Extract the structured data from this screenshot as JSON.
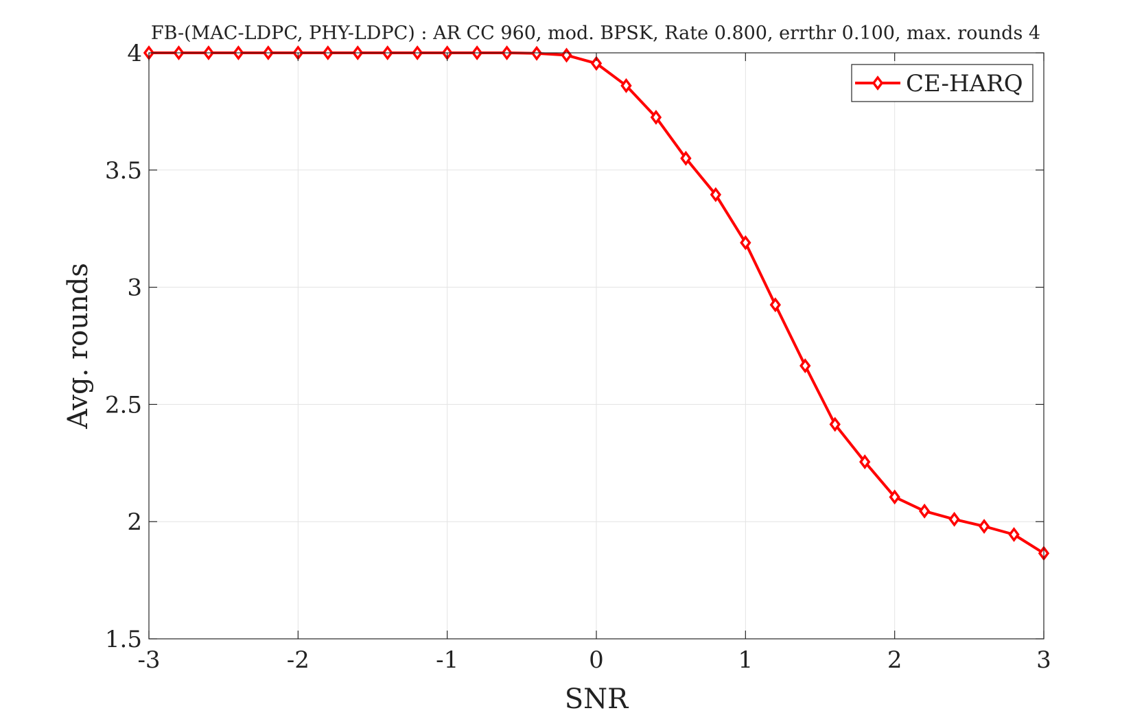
{
  "chart_data": {
    "type": "line",
    "title": "FB-(MAC-LDPC, PHY-LDPC) : AR CC 960, mod. BPSK, Rate 0.800, errthr 0.100, max. rounds 4",
    "xlabel": "SNR",
    "ylabel": "Avg. rounds",
    "xlim": [
      -3,
      3
    ],
    "ylim": [
      1.5,
      4
    ],
    "xticks": [
      -3,
      -2,
      -1,
      0,
      1,
      2,
      3
    ],
    "xtick_labels": [
      "-3",
      "-2",
      "-1",
      "0",
      "1",
      "2",
      "3"
    ],
    "yticks": [
      1.5,
      2,
      2.5,
      3,
      3.5,
      4
    ],
    "ytick_labels": [
      "1.5",
      "2",
      "2.5",
      "3",
      "3.5",
      "4"
    ],
    "grid": true,
    "legend_position": "top-right",
    "series": [
      {
        "name": "CE-HARQ",
        "color": "#ff0000",
        "marker": "diamond",
        "x": [
          -3,
          -2.8,
          -2.6,
          -2.4,
          -2.2,
          -2,
          -1.8,
          -1.6,
          -1.4,
          -1.2,
          -1,
          -0.8,
          -0.6,
          -0.4,
          -0.2,
          0,
          0.2,
          0.4,
          0.6,
          0.8,
          1,
          1.2,
          1.4,
          1.6,
          1.8,
          2,
          2.2,
          2.4,
          2.6,
          2.8,
          3
        ],
        "y": [
          4,
          4,
          4,
          4,
          4,
          4,
          4,
          4,
          4,
          4,
          4,
          4,
          4,
          3.998,
          3.99,
          3.955,
          3.86,
          3.725,
          3.55,
          3.395,
          3.19,
          2.925,
          2.665,
          2.415,
          2.255,
          2.105,
          2.045,
          2.01,
          1.98,
          1.945,
          1.865
        ]
      }
    ]
  }
}
